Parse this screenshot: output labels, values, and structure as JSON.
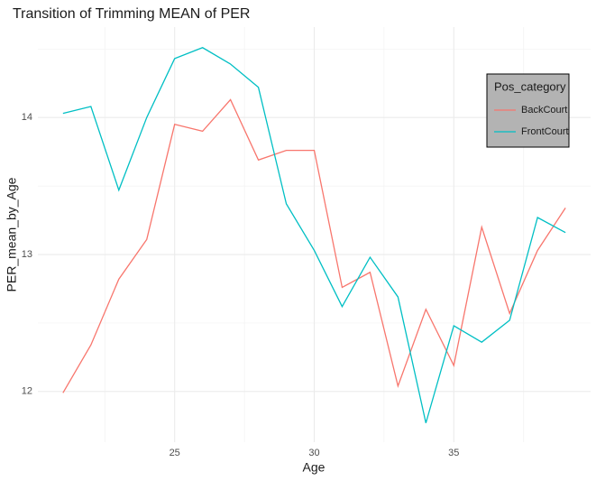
{
  "chart_data": {
    "type": "line",
    "title": "Transition of Trimming MEAN of PER",
    "x_label": "Age",
    "y_label": "PER_mean_by_Age",
    "x": [
      21,
      22,
      23,
      24,
      25,
      26,
      27,
      28,
      29,
      30,
      31,
      32,
      33,
      34,
      35,
      36,
      37,
      38,
      39
    ],
    "series": [
      {
        "name": "BackCourt",
        "color": "#F8766D",
        "values": [
          11.99,
          12.34,
          12.82,
          13.11,
          13.95,
          13.9,
          14.13,
          13.69,
          13.76,
          13.76,
          12.76,
          12.87,
          12.04,
          12.6,
          12.19,
          13.2,
          12.57,
          13.03,
          13.34
        ]
      },
      {
        "name": "FrontCourt",
        "color": "#00BFC4",
        "values": [
          14.03,
          14.08,
          13.47,
          14.0,
          14.43,
          14.51,
          14.39,
          14.22,
          13.37,
          13.03,
          12.62,
          12.98,
          12.69,
          11.77,
          12.48,
          12.36,
          12.52,
          13.27,
          13.16
        ]
      }
    ],
    "xlim": [
      20.1,
      39.9
    ],
    "ylim": [
      11.63,
      14.66
    ],
    "xticks": [
      25,
      30,
      35
    ],
    "yticks": [
      12,
      13,
      14
    ],
    "grid": true,
    "minor_grid": true,
    "legend_title": "Pos_category",
    "legend_position": "top-right"
  }
}
